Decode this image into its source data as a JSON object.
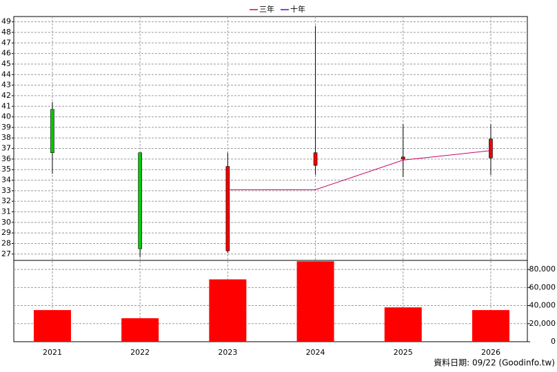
{
  "chart_data": {
    "type": "candlestick",
    "categories": [
      "2021",
      "2022",
      "2023",
      "2024",
      "2025",
      "2026"
    ],
    "open": [
      40.7,
      36.6,
      27.3,
      35.4,
      36.0,
      36.1
    ],
    "high": [
      41.4,
      36.6,
      36.6,
      48.6,
      39.3,
      39.3
    ],
    "low": [
      34.6,
      26.7,
      27.1,
      34.5,
      34.3,
      34.5
    ],
    "close": [
      36.6,
      27.5,
      35.3,
      36.6,
      36.2,
      37.9
    ],
    "up_color": "#ee0000",
    "down_color": "#00cc00",
    "ylim": [
      26.4,
      49.5
    ],
    "yticks": [
      27,
      28,
      29,
      30,
      31,
      32,
      33,
      34,
      35,
      36,
      37,
      38,
      39,
      40,
      41,
      42,
      43,
      44,
      45,
      46,
      47,
      48,
      49
    ],
    "series": [
      {
        "name": "三年",
        "color": "#cc0066",
        "values": [
          null,
          null,
          33.1,
          33.1,
          35.9,
          36.8
        ]
      },
      {
        "name": "十年",
        "color": "#6600cc",
        "values": [
          null,
          null,
          null,
          null,
          null,
          null
        ]
      }
    ],
    "volume": {
      "values": [
        35000,
        26000,
        69000,
        89000,
        38000,
        35000
      ],
      "color": "#ff0000",
      "ylim": [
        0,
        90000
      ],
      "yticks": [
        0,
        {
          "value": 20000,
          "label": "20,000"
        },
        {
          "value": 40000,
          "label": "40,000"
        },
        {
          "value": 60000,
          "label": "60,000"
        },
        {
          "value": 80000,
          "label": "80,000"
        }
      ]
    },
    "grid": true,
    "footnote": "資料日期: 09/22  (Goodinfo.tw)"
  }
}
